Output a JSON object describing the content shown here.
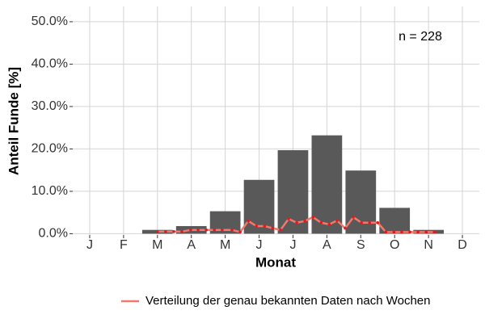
{
  "chart_data": {
    "type": "bar",
    "categories": [
      "J",
      "F",
      "M",
      "A",
      "M",
      "J",
      "J",
      "A",
      "S",
      "O",
      "N",
      "D"
    ],
    "values": [
      0,
      0,
      0.9,
      1.8,
      5.3,
      12.7,
      19.7,
      23.2,
      14.9,
      6.1,
      0.9,
      0
    ],
    "color": "#595959",
    "series": [
      {
        "name": "Verteilung der genau bekannten Daten nach Wochen",
        "type": "line",
        "color": "#f0786e",
        "point_color": "#e31a1c",
        "x": [
          3.0,
          3.24,
          3.48,
          3.72,
          3.98,
          4.2,
          4.44,
          4.68,
          4.91,
          5.2,
          5.44,
          5.68,
          5.92,
          6.16,
          6.4,
          6.63,
          6.87,
          7.11,
          7.35,
          7.59,
          7.83,
          8.07,
          8.3,
          8.54,
          8.78,
          9.02,
          9.26,
          9.5,
          9.74,
          9.98,
          10.21,
          10.45,
          10.69,
          10.93,
          11.17
        ],
        "values": [
          0.5,
          0.5,
          0.5,
          0.5,
          0.9,
          0.9,
          0.9,
          0.9,
          0.9,
          0.9,
          0.4,
          3.0,
          1.8,
          1.8,
          1.3,
          0.9,
          3.5,
          2.6,
          3.0,
          3.9,
          2.6,
          2.2,
          3.1,
          1.3,
          3.9,
          2.6,
          2.6,
          2.6,
          0.4,
          0.4,
          0.4,
          0.4,
          0.4,
          0.4,
          0.4
        ]
      }
    ],
    "annotation": "n = 228",
    "x_label": "Monat",
    "y_label": "Anteil Funde [%]",
    "xlim": [
      0.5,
      12.5
    ],
    "ylim": [
      -0.3,
      53.6
    ],
    "yticks": [
      {
        "value": 0,
        "label": "0.0%"
      },
      {
        "value": 10,
        "label": "10.0%"
      },
      {
        "value": 20,
        "label": "20.0%"
      },
      {
        "value": 30,
        "label": "30.0%"
      },
      {
        "value": 40,
        "label": "40.0%"
      },
      {
        "value": 50,
        "label": "50.0%"
      }
    ],
    "grid": true,
    "legend": "bottom"
  }
}
